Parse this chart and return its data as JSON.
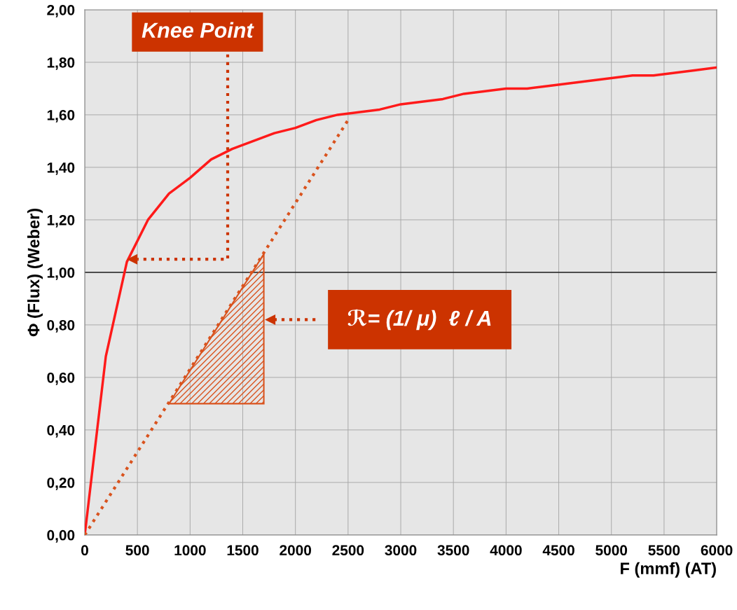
{
  "chart_data": {
    "type": "line",
    "xlabel": "F (mmf) (AT)",
    "ylabel": "Φ (Flux) (Weber)",
    "xlim": [
      0,
      6000
    ],
    "xticks": [
      0,
      500,
      1000,
      1500,
      2000,
      2500,
      3000,
      3500,
      4000,
      4500,
      5000,
      5500,
      6000
    ],
    "ylim": [
      0,
      2
    ],
    "yticks": [
      {
        "value": 0,
        "label": "0,00"
      },
      {
        "value": 0.2,
        "label": "0,20"
      },
      {
        "value": 0.4,
        "label": "0,40"
      },
      {
        "value": 0.6,
        "label": "0,60"
      },
      {
        "value": 0.8,
        "label": "0,80"
      },
      {
        "value": 1.0,
        "label": "1,00"
      },
      {
        "value": 1.2,
        "label": "1,20"
      },
      {
        "value": 1.4,
        "label": "1,40"
      },
      {
        "value": 1.6,
        "label": "1,60"
      },
      {
        "value": 1.8,
        "label": "1,80"
      },
      {
        "value": 2.0,
        "label": "2,00"
      }
    ],
    "grid": true,
    "marker": "none",
    "series": [
      {
        "color": "#ff1a1a",
        "line_style": "solid",
        "x": [
          0,
          200,
          400,
          600,
          800,
          1000,
          1200,
          1400,
          1600,
          1800,
          2000,
          2200,
          2400,
          2600,
          2800,
          3000,
          3200,
          3400,
          3600,
          3800,
          4000,
          4200,
          4400,
          4600,
          4800,
          5000,
          5200,
          5400,
          5600,
          5800,
          6000
        ],
        "values": [
          0,
          0.68,
          1.04,
          1.2,
          1.3,
          1.36,
          1.43,
          1.47,
          1.5,
          1.53,
          1.55,
          1.58,
          1.6,
          1.61,
          1.62,
          1.64,
          1.65,
          1.66,
          1.68,
          1.69,
          1.7,
          1.7,
          1.71,
          1.72,
          1.73,
          1.74,
          1.75,
          1.75,
          1.76,
          1.77,
          1.78
        ]
      },
      {
        "color": "#d9531e",
        "line_style": "dotted",
        "x": [
          0,
          2500
        ],
        "values": [
          0,
          1.58
        ]
      }
    ],
    "ref_lines": [
      {
        "axis": "y",
        "value": 1.0,
        "color": "#000000",
        "line_style": "solid"
      }
    ],
    "annotations": [
      "Knee Point",
      "ℛ= (1/ μ)  ℓ / A"
    ]
  }
}
